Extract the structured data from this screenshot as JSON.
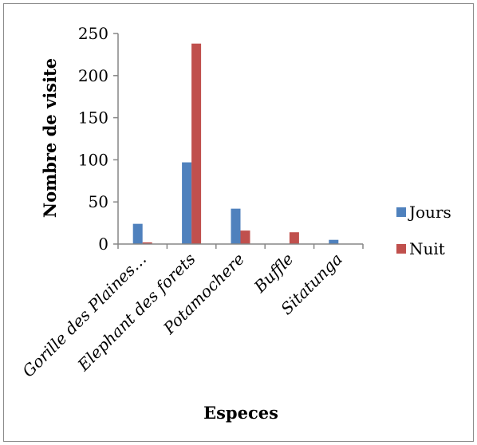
{
  "chart_data": {
    "type": "bar",
    "categories": [
      "Gorille des Plaines…",
      "Elephant des forets",
      "Potamochere",
      "Buffle",
      "Sitatunga"
    ],
    "series": [
      {
        "name": "Jours",
        "values": [
          24,
          97,
          42,
          0,
          5
        ],
        "color": "#4f81bd"
      },
      {
        "name": "Nuit",
        "values": [
          2,
          238,
          16,
          14,
          0
        ],
        "color": "#c0504d"
      }
    ],
    "xlabel": "Especes",
    "ylabel": "Nombre de visite",
    "ylim": [
      0,
      250
    ],
    "yticks": [
      0,
      50,
      100,
      150,
      200,
      250
    ],
    "grid": false,
    "legend_position": "right"
  }
}
